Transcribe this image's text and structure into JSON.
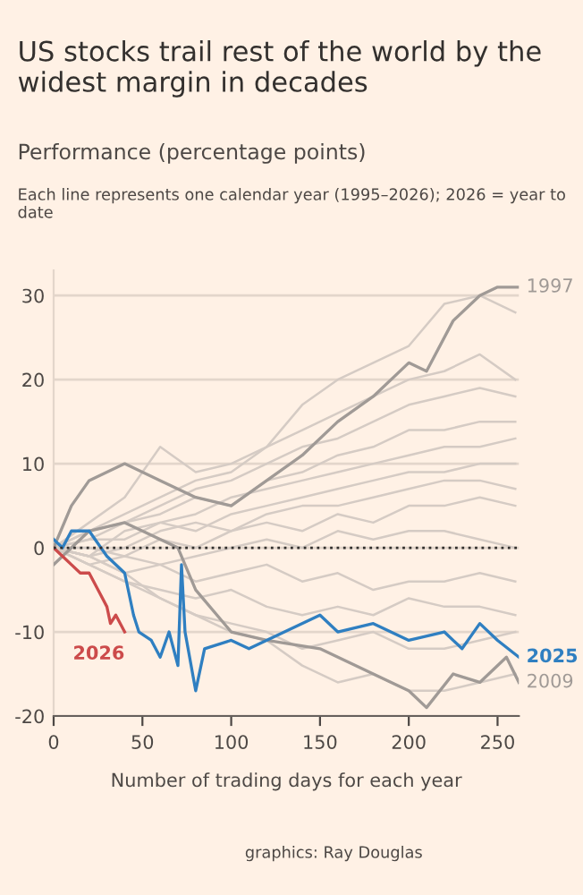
{
  "chart_data": {
    "type": "line",
    "title": "US stocks trail rest of the world by the widest margin in decades",
    "subtitle": "Performance (percentage points)",
    "annotations": [
      "Each line represents one calendar year (1995–2026); 2026 = year to date",
      "graphics: Ray Douglas"
    ],
    "xlabel": "Number of trading days for each year",
    "x": [
      0,
      20,
      40,
      60,
      80,
      100,
      120,
      140,
      160,
      180,
      200,
      220,
      240,
      260
    ],
    "series": [
      {
        "color": "#d5cbc4",
        "values": [
          0,
          3,
          6,
          12,
          9,
          10,
          12,
          17,
          20,
          22,
          24,
          29,
          30,
          28
        ]
      },
      {
        "color": "#d5cbc4",
        "values": [
          0,
          2,
          4,
          6,
          8,
          9,
          12,
          14,
          16,
          18,
          20,
          21,
          23,
          20
        ]
      },
      {
        "color": "#d5cbc4",
        "values": [
          0,
          1,
          3,
          5,
          7,
          8,
          10,
          12,
          13,
          15,
          17,
          18,
          19,
          18
        ]
      },
      {
        "color": "#d5cbc4",
        "values": [
          0,
          2,
          3,
          4,
          6,
          5,
          8,
          9,
          11,
          12,
          14,
          14,
          15,
          15
        ]
      },
      {
        "color": "#d5cbc4",
        "values": [
          0,
          -1,
          2,
          3,
          4,
          6,
          7,
          8,
          9,
          10,
          11,
          12,
          12,
          13
        ]
      },
      {
        "color": "#d5cbc4",
        "values": [
          0,
          1,
          1,
          3,
          2,
          4,
          5,
          6,
          7,
          8,
          9,
          9,
          10,
          10
        ]
      },
      {
        "color": "#d5cbc4",
        "values": [
          0,
          -1,
          0,
          2,
          3,
          2,
          4,
          5,
          5,
          6,
          7,
          8,
          8,
          7
        ]
      },
      {
        "color": "#d5cbc4",
        "values": [
          0,
          0,
          -1,
          1,
          0,
          2,
          3,
          2,
          4,
          3,
          5,
          5,
          6,
          5
        ]
      },
      {
        "color": "#d5cbc4",
        "values": [
          0,
          -2,
          -1,
          -2,
          -1,
          0,
          1,
          0,
          2,
          1,
          2,
          2,
          1,
          0
        ]
      },
      {
        "color": "#d5cbc4",
        "values": [
          0,
          -1,
          -3,
          -2,
          -4,
          -3,
          -2,
          -4,
          -3,
          -5,
          -4,
          -4,
          -3,
          -4
        ]
      },
      {
        "color": "#d5cbc4",
        "values": [
          0,
          -2,
          -4,
          -5,
          -6,
          -5,
          -7,
          -8,
          -7,
          -8,
          -6,
          -7,
          -7,
          -8
        ]
      },
      {
        "color": "#d5cbc4",
        "values": [
          0,
          -1,
          -3,
          -6,
          -8,
          -9,
          -10,
          -12,
          -11,
          -10,
          -12,
          -12,
          -11,
          -10
        ]
      },
      {
        "color": "#d5cbc4",
        "values": [
          0,
          -2,
          -4,
          -6,
          -8,
          -10,
          -11,
          -14,
          -16,
          -15,
          -17,
          -17,
          -16,
          -15
        ]
      },
      {
        "name": "2009",
        "color": "#a09a96",
        "x": [
          0,
          20,
          40,
          50,
          70,
          80,
          100,
          120,
          150,
          180,
          200,
          210,
          225,
          240,
          255,
          262
        ],
        "values": [
          -2,
          2,
          3,
          2,
          0,
          -5,
          -10,
          -11,
          -12,
          -15,
          -17,
          -19,
          -15,
          -16,
          -13,
          -16
        ]
      },
      {
        "name": "1997",
        "color": "#a09a96",
        "x": [
          0,
          10,
          20,
          40,
          60,
          80,
          100,
          120,
          140,
          160,
          180,
          200,
          210,
          225,
          240,
          250,
          262
        ],
        "values": [
          0,
          5,
          8,
          10,
          8,
          6,
          5,
          8,
          11,
          15,
          18,
          22,
          21,
          27,
          30,
          31,
          31
        ]
      },
      {
        "name": "2025",
        "color": "#2f7fc1",
        "x": [
          0,
          5,
          10,
          20,
          30,
          40,
          45,
          48,
          55,
          60,
          65,
          70,
          72,
          74,
          80,
          85,
          100,
          110,
          130,
          150,
          160,
          180,
          200,
          220,
          230,
          240,
          250,
          262
        ],
        "values": [
          1,
          0,
          2,
          2,
          -1,
          -3,
          -8,
          -10,
          -11,
          -13,
          -10,
          -14,
          -2,
          -10,
          -17,
          -12,
          -11,
          -12,
          -10,
          -8,
          -10,
          -9,
          -11,
          -10,
          -12,
          -9,
          -11,
          -13
        ]
      },
      {
        "name": "2026",
        "color": "#cc4b4b",
        "x": [
          0,
          5,
          10,
          15,
          20,
          25,
          30,
          32,
          35,
          40
        ],
        "values": [
          0,
          -1,
          -2,
          -3,
          -3,
          -5,
          -7,
          -9,
          -8,
          -10
        ]
      }
    ],
    "ref_lines": [
      {
        "axis": "y",
        "value": 0,
        "line_style": "dotted",
        "color": "#33302e"
      }
    ],
    "xlim": [
      0,
      262
    ],
    "ylim": [
      -20,
      33
    ],
    "xticks": [
      0,
      50,
      100,
      150,
      200,
      250
    ],
    "yticks": [
      -20,
      -10,
      0,
      10,
      20,
      30
    ],
    "grid": "y",
    "legend": false,
    "line_style": "solid",
    "marker": "none"
  }
}
